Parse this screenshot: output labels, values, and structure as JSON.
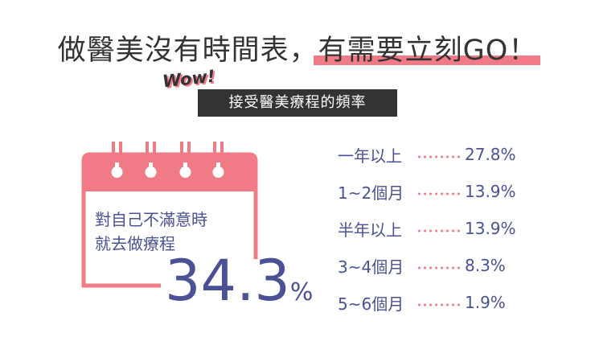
{
  "headline": {
    "plain": "做醫美沒有時間表，",
    "highlight": "有需要立刻GO！"
  },
  "badge": "Wow!",
  "subtitle": "接受醫美療程的頻率",
  "callout": {
    "line1": "對自己不滿意時",
    "line2": "就去做療程",
    "value": "34.3",
    "unit": "%"
  },
  "colors": {
    "accent": "#f07b87",
    "primary": "#4a5194",
    "text": "#333333"
  },
  "chart_data": {
    "type": "table",
    "title": "接受醫美療程的頻率",
    "rows": [
      {
        "category": "一年以上",
        "value": 27.8,
        "label": "27.8%"
      },
      {
        "category": "1~2個月",
        "value": 13.9,
        "label": "13.9%"
      },
      {
        "category": "半年以上",
        "value": 13.9,
        "label": "13.9%"
      },
      {
        "category": "3~4個月",
        "value": 8.3,
        "label": "8.3%"
      },
      {
        "category": "5~6個月",
        "value": 1.9,
        "label": "1.9%"
      }
    ],
    "highlight": {
      "category": "對自己不滿意時就去做療程",
      "value": 34.3,
      "label": "34.3%"
    }
  }
}
